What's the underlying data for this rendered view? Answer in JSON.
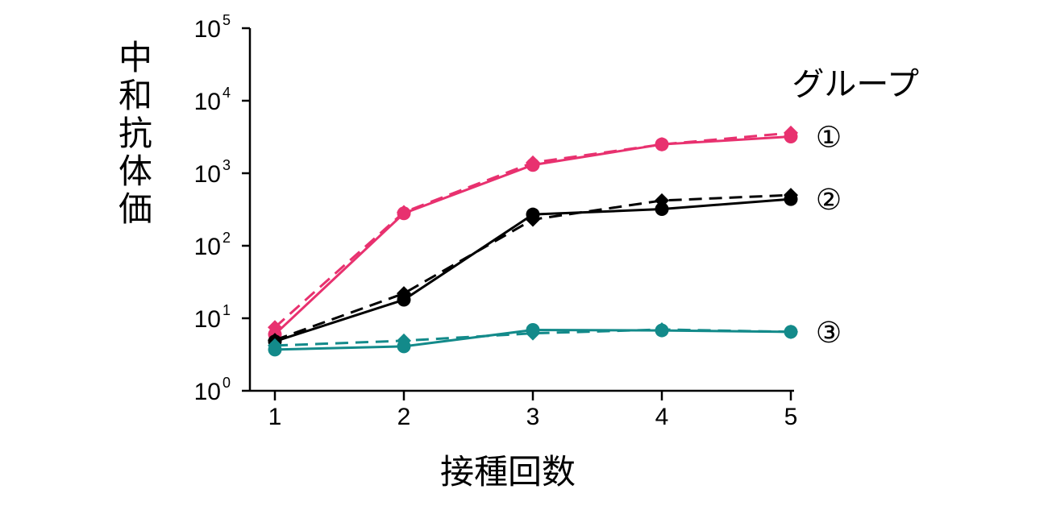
{
  "chart_data": {
    "type": "line",
    "xlabel": "接種回数",
    "ylabel": "中和抗体価",
    "legend_title": "グループ",
    "x": [
      1,
      2,
      3,
      4,
      5
    ],
    "x_tick_labels": [
      "1",
      "2",
      "3",
      "4",
      "5"
    ],
    "y_scale": "log",
    "ylim": [
      1,
      100000
    ],
    "y_ticks": [
      {
        "base": "10",
        "exp": "0"
      },
      {
        "base": "10",
        "exp": "1"
      },
      {
        "base": "10",
        "exp": "2"
      },
      {
        "base": "10",
        "exp": "3"
      },
      {
        "base": "10",
        "exp": "4"
      },
      {
        "base": "10",
        "exp": "5"
      }
    ],
    "groups": [
      {
        "label": "①",
        "color": "#e8316f",
        "series": [
          {
            "line": "solid",
            "marker": "circle",
            "values": [
              6,
              280,
              1300,
              2500,
              3200
            ]
          },
          {
            "line": "dashed",
            "marker": "diamond",
            "values": [
              7.5,
              290,
              1400,
              2500,
              3600
            ]
          }
        ]
      },
      {
        "label": "②",
        "color": "#000000",
        "series": [
          {
            "line": "solid",
            "marker": "circle",
            "values": [
              4.8,
              18,
              270,
              320,
              440
            ]
          },
          {
            "line": "dashed",
            "marker": "diamond",
            "values": [
              5,
              22,
              230,
              420,
              500
            ]
          }
        ]
      },
      {
        "label": "③",
        "color": "#138a8a",
        "series": [
          {
            "line": "solid",
            "marker": "circle",
            "values": [
              3.7,
              4.1,
              6.9,
              6.8,
              6.5
            ]
          },
          {
            "line": "dashed",
            "marker": "diamond",
            "values": [
              4.2,
              4.9,
              6.2,
              7.0,
              6.5
            ]
          }
        ]
      }
    ]
  }
}
